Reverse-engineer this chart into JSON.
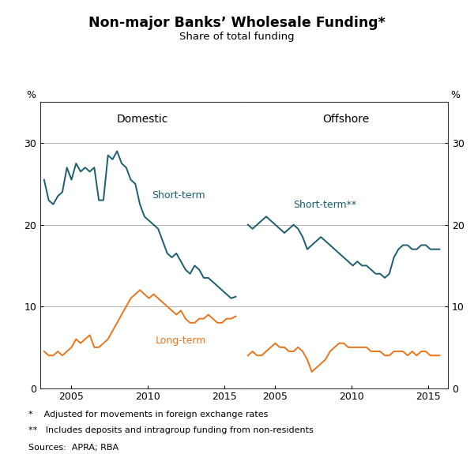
{
  "title": "Non-major Banks’ Wholesale Funding*",
  "subtitle": "Share of total funding",
  "left_panel_label": "Domestic",
  "right_panel_label": "Offshore",
  "ylim": [
    0,
    35
  ],
  "yticks": [
    0,
    10,
    20,
    30
  ],
  "chart_teal": "#1B5E6E",
  "orange_color": "#E8751A",
  "footnote1": "*    Adjusted for movements in foreign exchange rates",
  "footnote2": "**   Includes deposits and intragroup funding from non-residents",
  "sources": "Sources:  APRA; RBA",
  "dom_short_term": [
    25.5,
    23.0,
    22.5,
    23.5,
    24.0,
    27.0,
    25.5,
    27.5,
    26.5,
    27.0,
    26.5,
    27.0,
    23.0,
    23.0,
    28.5,
    28.0,
    29.0,
    27.5,
    27.0,
    25.5,
    25.0,
    22.5,
    21.0,
    20.5,
    20.0,
    19.5,
    18.0,
    16.5,
    16.0,
    16.5,
    15.5,
    14.5,
    14.0,
    15.0,
    14.5,
    13.5,
    13.5,
    13.0,
    12.5,
    12.0,
    11.5,
    11.0,
    11.2
  ],
  "dom_long_term": [
    4.5,
    4.0,
    4.0,
    4.5,
    4.0,
    4.5,
    5.0,
    6.0,
    5.5,
    6.0,
    6.5,
    5.0,
    5.0,
    5.5,
    6.0,
    7.0,
    8.0,
    9.0,
    10.0,
    11.0,
    11.5,
    12.0,
    11.5,
    11.0,
    11.5,
    11.0,
    10.5,
    10.0,
    9.5,
    9.0,
    9.5,
    8.5,
    8.0,
    8.0,
    8.5,
    8.5,
    9.0,
    8.5,
    8.0,
    8.0,
    8.5,
    8.5,
    8.8
  ],
  "off_short_term": [
    20.0,
    19.5,
    20.0,
    20.5,
    21.0,
    20.5,
    20.0,
    19.5,
    19.0,
    19.5,
    20.0,
    19.5,
    18.5,
    17.0,
    17.5,
    18.0,
    18.5,
    18.0,
    17.5,
    17.0,
    16.5,
    16.0,
    15.5,
    15.0,
    15.5,
    15.0,
    15.0,
    14.5,
    14.0,
    14.0,
    13.5,
    14.0,
    16.0,
    17.0,
    17.5,
    17.5,
    17.0,
    17.0,
    17.5,
    17.5,
    17.0,
    17.0,
    17.0
  ],
  "off_long_term": [
    4.0,
    4.5,
    4.0,
    4.0,
    4.5,
    5.0,
    5.5,
    5.0,
    5.0,
    4.5,
    4.5,
    5.0,
    4.5,
    3.5,
    2.0,
    2.5,
    3.0,
    3.5,
    4.5,
    5.0,
    5.5,
    5.5,
    5.0,
    5.0,
    5.0,
    5.0,
    5.0,
    4.5,
    4.5,
    4.5,
    4.0,
    4.0,
    4.5,
    4.5,
    4.5,
    4.0,
    4.5,
    4.0,
    4.5,
    4.5,
    4.0,
    4.0,
    4.0
  ],
  "x_ticks_years": [
    2005,
    2010,
    2015
  ],
  "background_color": "#ffffff",
  "grid_color": "#aaaaaa",
  "border_color": "#333333"
}
